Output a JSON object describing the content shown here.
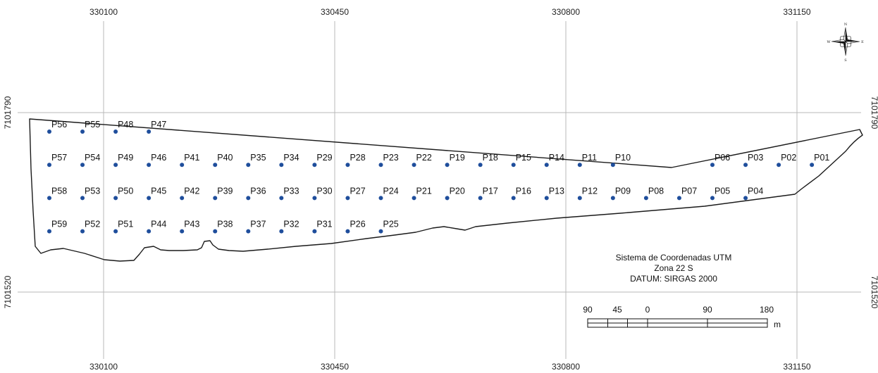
{
  "grid": {
    "x_ticks": [
      "330100",
      "330450",
      "330800",
      "331150"
    ],
    "y_ticks": [
      "7101790",
      "7101520"
    ]
  },
  "points": [
    {
      "id": "P01",
      "row": 1,
      "col": 24
    },
    {
      "id": "P02",
      "row": 1,
      "col": 23
    },
    {
      "id": "P03",
      "row": 1,
      "col": 22
    },
    {
      "id": "P04",
      "row": 2,
      "col": 22
    },
    {
      "id": "P05",
      "row": 2,
      "col": 21
    },
    {
      "id": "P06",
      "row": 1,
      "col": 21
    },
    {
      "id": "P07",
      "row": 2,
      "col": 20
    },
    {
      "id": "P08",
      "row": 2,
      "col": 19
    },
    {
      "id": "P09",
      "row": 2,
      "col": 18
    },
    {
      "id": "P10",
      "row": 1,
      "col": 18
    },
    {
      "id": "P11",
      "row": 1,
      "col": 17
    },
    {
      "id": "P12",
      "row": 2,
      "col": 17
    },
    {
      "id": "P13",
      "row": 2,
      "col": 16
    },
    {
      "id": "P14",
      "row": 1,
      "col": 16
    },
    {
      "id": "P15",
      "row": 1,
      "col": 15
    },
    {
      "id": "P16",
      "row": 2,
      "col": 15
    },
    {
      "id": "P17",
      "row": 2,
      "col": 14
    },
    {
      "id": "P18",
      "row": 1,
      "col": 14
    },
    {
      "id": "P19",
      "row": 1,
      "col": 13
    },
    {
      "id": "P20",
      "row": 2,
      "col": 13
    },
    {
      "id": "P21",
      "row": 2,
      "col": 12
    },
    {
      "id": "P22",
      "row": 1,
      "col": 12
    },
    {
      "id": "P23",
      "row": 1,
      "col": 11
    },
    {
      "id": "P24",
      "row": 2,
      "col": 11
    },
    {
      "id": "P25",
      "row": 3,
      "col": 11
    },
    {
      "id": "P26",
      "row": 3,
      "col": 10
    },
    {
      "id": "P27",
      "row": 2,
      "col": 10
    },
    {
      "id": "P28",
      "row": 1,
      "col": 10
    },
    {
      "id": "P29",
      "row": 1,
      "col": 9
    },
    {
      "id": "P30",
      "row": 2,
      "col": 9
    },
    {
      "id": "P31",
      "row": 3,
      "col": 9
    },
    {
      "id": "P32",
      "row": 3,
      "col": 8
    },
    {
      "id": "P33",
      "row": 2,
      "col": 8
    },
    {
      "id": "P34",
      "row": 1,
      "col": 8
    },
    {
      "id": "P35",
      "row": 1,
      "col": 7
    },
    {
      "id": "P36",
      "row": 2,
      "col": 7
    },
    {
      "id": "P37",
      "row": 3,
      "col": 7
    },
    {
      "id": "P38",
      "row": 3,
      "col": 6
    },
    {
      "id": "P39",
      "row": 2,
      "col": 6
    },
    {
      "id": "P40",
      "row": 1,
      "col": 6
    },
    {
      "id": "P41",
      "row": 1,
      "col": 5
    },
    {
      "id": "P42",
      "row": 2,
      "col": 5
    },
    {
      "id": "P43",
      "row": 3,
      "col": 5
    },
    {
      "id": "P44",
      "row": 3,
      "col": 4
    },
    {
      "id": "P45",
      "row": 2,
      "col": 4
    },
    {
      "id": "P46",
      "row": 1,
      "col": 4
    },
    {
      "id": "P47",
      "row": 0,
      "col": 4
    },
    {
      "id": "P48",
      "row": 0,
      "col": 3
    },
    {
      "id": "P49",
      "row": 1,
      "col": 3
    },
    {
      "id": "P50",
      "row": 2,
      "col": 3
    },
    {
      "id": "P51",
      "row": 3,
      "col": 3
    },
    {
      "id": "P52",
      "row": 3,
      "col": 2
    },
    {
      "id": "P53",
      "row": 2,
      "col": 2
    },
    {
      "id": "P54",
      "row": 1,
      "col": 2
    },
    {
      "id": "P55",
      "row": 0,
      "col": 2
    },
    {
      "id": "P56",
      "row": 0,
      "col": 1
    },
    {
      "id": "P57",
      "row": 1,
      "col": 1
    },
    {
      "id": "P58",
      "row": 2,
      "col": 1
    },
    {
      "id": "P59",
      "row": 3,
      "col": 1
    }
  ],
  "info_box": {
    "line1": "Sistema de Coordenadas UTM",
    "line2": "Zona 22 S",
    "line3": "DATUM: SIRGAS 2000"
  },
  "scale_bar": {
    "labels": [
      "90",
      "45",
      "0",
      "90",
      "180"
    ],
    "unit": "m"
  },
  "compass": {
    "n": "N",
    "s": "S",
    "e": "E",
    "w": "W"
  },
  "colors": {
    "point": "#1f4e9c",
    "grid": "#b8b8b8",
    "outline": "#1a1a1a"
  }
}
